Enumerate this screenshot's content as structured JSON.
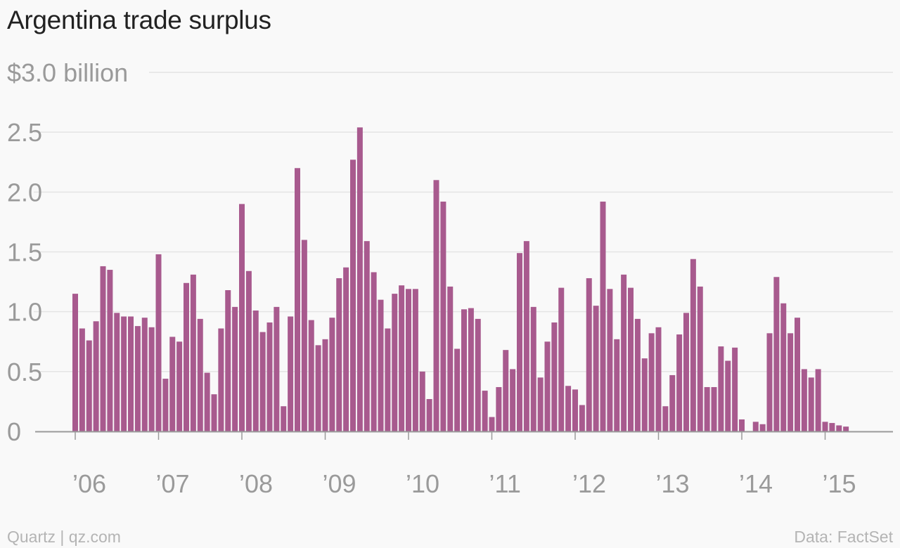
{
  "title": "Argentina trade surplus",
  "footer": {
    "credit": "Quartz | qz.com",
    "source": "Data: FactSet"
  },
  "colors": {
    "bar": "#a85a8e",
    "grid": "#e4e4e4",
    "axis": "#9a9a9a",
    "text": "#9a9a9a"
  },
  "chart_data": {
    "type": "bar",
    "ylabel": "",
    "ylim": [
      0,
      3.0
    ],
    "y_ticks": [
      {
        "value": 0,
        "label": "0"
      },
      {
        "value": 0.5,
        "label": "0.5"
      },
      {
        "value": 1.0,
        "label": "1.0"
      },
      {
        "value": 1.5,
        "label": "1.5"
      },
      {
        "value": 2.0,
        "label": "2.0"
      },
      {
        "value": 2.5,
        "label": "2.5"
      },
      {
        "value": 3.0,
        "label": "$3.0 billion"
      }
    ],
    "x_ticks": [
      "’06",
      "’07",
      "’08",
      "’09",
      "’10",
      "’11",
      "’12",
      "’13",
      "’14",
      "’15"
    ],
    "grid": true,
    "period": "monthly, Jan 2006 - Apr 2015",
    "values": [
      1.15,
      0.86,
      0.76,
      0.92,
      1.38,
      1.35,
      0.99,
      0.96,
      0.96,
      0.88,
      0.95,
      0.87,
      1.48,
      0.44,
      0.79,
      0.75,
      1.24,
      1.31,
      0.94,
      0.49,
      0.31,
      0.86,
      1.18,
      1.04,
      1.9,
      1.34,
      1.01,
      0.83,
      0.91,
      1.04,
      0.21,
      0.96,
      2.2,
      1.6,
      0.93,
      0.72,
      0.77,
      0.95,
      1.28,
      1.37,
      2.27,
      2.54,
      1.59,
      1.33,
      1.1,
      0.86,
      1.15,
      1.22,
      1.19,
      1.19,
      0.5,
      0.27,
      2.1,
      1.92,
      1.21,
      0.69,
      1.02,
      1.03,
      0.94,
      0.34,
      0.12,
      0.37,
      0.68,
      0.52,
      1.49,
      1.59,
      1.04,
      0.45,
      0.75,
      0.91,
      1.2,
      0.38,
      0.35,
      0.22,
      1.28,
      1.05,
      1.92,
      1.19,
      0.77,
      1.31,
      1.2,
      0.94,
      0.61,
      0.82,
      0.87,
      0.21,
      0.47,
      0.81,
      0.99,
      1.44,
      1.21,
      0.37,
      0.37,
      0.71,
      0.59,
      0.7,
      0.1,
      0.0,
      0.08,
      0.06,
      0.82,
      1.29,
      1.07,
      0.82,
      0.95,
      0.52,
      0.45,
      0.52,
      0.08,
      0.07,
      0.05,
      0.04
    ]
  }
}
